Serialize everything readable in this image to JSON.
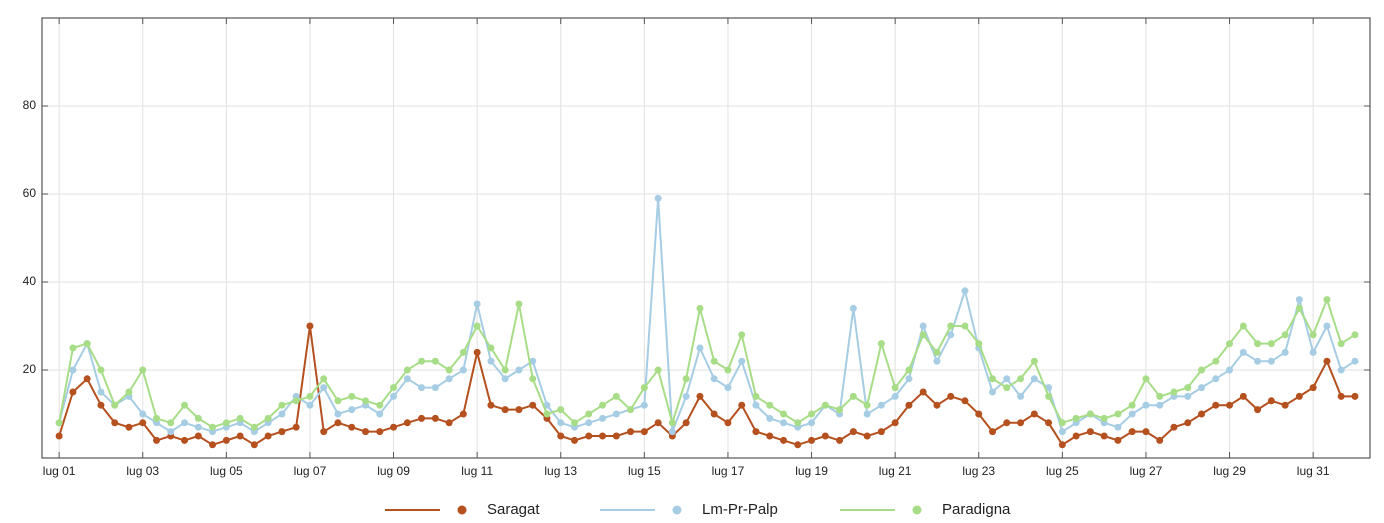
{
  "chart_data": {
    "type": "line",
    "x": [
      1,
      1.33,
      1.67,
      2,
      2.33,
      2.67,
      3,
      3.33,
      3.67,
      4,
      4.33,
      4.67,
      5,
      5.33,
      5.67,
      6,
      6.33,
      6.67,
      7,
      7.33,
      7.67,
      8,
      8.33,
      8.67,
      9,
      9.33,
      9.67,
      10,
      10.33,
      10.67,
      11,
      11.33,
      11.67,
      12,
      12.33,
      12.67,
      13,
      13.33,
      13.67,
      14,
      14.33,
      14.67,
      15,
      15.33,
      15.67,
      16,
      16.33,
      16.67,
      17,
      17.33,
      17.67,
      18,
      18.33,
      18.67,
      19,
      19.33,
      19.67,
      20,
      20.33,
      20.67,
      21,
      21.33,
      21.67,
      22,
      22.33,
      22.67,
      23,
      23.33,
      23.67,
      24,
      24.33,
      24.67,
      25,
      25.33,
      25.67,
      26,
      26.33,
      26.67,
      27,
      27.33,
      27.67,
      28,
      28.33,
      28.67,
      29,
      29.33,
      29.67,
      30,
      30.33,
      30.67,
      31,
      31.33,
      31.67,
      32
    ],
    "series": [
      {
        "name": "Saragat",
        "color": "#b5501f",
        "values": [
          5,
          15,
          18,
          12,
          8,
          7,
          8,
          4,
          5,
          4,
          5,
          3,
          4,
          5,
          3,
          5,
          6,
          7,
          30,
          6,
          8,
          7,
          6,
          6,
          7,
          8,
          9,
          9,
          8,
          10,
          24,
          12,
          11,
          11,
          12,
          9,
          5,
          4,
          5,
          5,
          5,
          6,
          6,
          8,
          5,
          8,
          14,
          10,
          8,
          12,
          6,
          5,
          4,
          3,
          4,
          5,
          4,
          6,
          5,
          6,
          8,
          12,
          15,
          12,
          14,
          13,
          10,
          6,
          8,
          8,
          10,
          8,
          3,
          5,
          6,
          5,
          4,
          6,
          6,
          4,
          7,
          8,
          10,
          12,
          12,
          14,
          11,
          13,
          12,
          14,
          16,
          22,
          14,
          14
        ]
      },
      {
        "name": "Lm-Pr-Palp",
        "color": "#a6cde3",
        "values": [
          8,
          20,
          26,
          15,
          12,
          14,
          10,
          8,
          6,
          8,
          7,
          6,
          7,
          8,
          6,
          8,
          10,
          14,
          12,
          16,
          10,
          11,
          12,
          10,
          14,
          18,
          16,
          16,
          18,
          20,
          35,
          22,
          18,
          20,
          22,
          12,
          8,
          7,
          8,
          9,
          10,
          11,
          12,
          59,
          6,
          14,
          25,
          18,
          16,
          22,
          12,
          9,
          8,
          7,
          8,
          12,
          10,
          34,
          10,
          12,
          14,
          18,
          30,
          22,
          28,
          38,
          25,
          15,
          18,
          14,
          18,
          16,
          6,
          8,
          10,
          8,
          7,
          10,
          12,
          12,
          14,
          14,
          16,
          18,
          20,
          24,
          22,
          22,
          24,
          36,
          24,
          30,
          20,
          22
        ]
      },
      {
        "name": "Paradigna",
        "color": "#a8dd88",
        "values": [
          8,
          25,
          26,
          20,
          12,
          15,
          20,
          9,
          8,
          12,
          9,
          7,
          8,
          9,
          7,
          9,
          12,
          13,
          14,
          18,
          13,
          14,
          13,
          12,
          16,
          20,
          22,
          22,
          20,
          24,
          30,
          25,
          20,
          35,
          18,
          10,
          11,
          8,
          10,
          12,
          14,
          11,
          16,
          20,
          8,
          18,
          34,
          22,
          20,
          28,
          14,
          12,
          10,
          8,
          10,
          12,
          11,
          14,
          12,
          26,
          16,
          20,
          28,
          24,
          30,
          30,
          26,
          18,
          16,
          18,
          22,
          14,
          8,
          9,
          10,
          9,
          10,
          12,
          18,
          14,
          15,
          16,
          20,
          22,
          26,
          30,
          26,
          26,
          28,
          34,
          28,
          36,
          26,
          28
        ]
      }
    ],
    "xlim": [
      0.59,
      32.36
    ],
    "xticks": [
      {
        "value": 1,
        "label": "lug 01"
      },
      {
        "value": 3,
        "label": "lug 03"
      },
      {
        "value": 5,
        "label": "lug 05"
      },
      {
        "value": 7,
        "label": "lug 07"
      },
      {
        "value": 9,
        "label": "lug 09"
      },
      {
        "value": 11,
        "label": "lug 11"
      },
      {
        "value": 13,
        "label": "lug 13"
      },
      {
        "value": 15,
        "label": "lug 15"
      },
      {
        "value": 17,
        "label": "lug 17"
      },
      {
        "value": 19,
        "label": "lug 19"
      },
      {
        "value": 21,
        "label": "lug 21"
      },
      {
        "value": 23,
        "label": "lug 23"
      },
      {
        "value": 25,
        "label": "lug 25"
      },
      {
        "value": 27,
        "label": "lug 27"
      },
      {
        "value": 29,
        "label": "lug 29"
      },
      {
        "value": 31,
        "label": "lug 31"
      }
    ],
    "ylim": [
      0,
      100
    ],
    "yticks": [
      20,
      40,
      60,
      80
    ],
    "grid": true,
    "legend": "bottom"
  }
}
